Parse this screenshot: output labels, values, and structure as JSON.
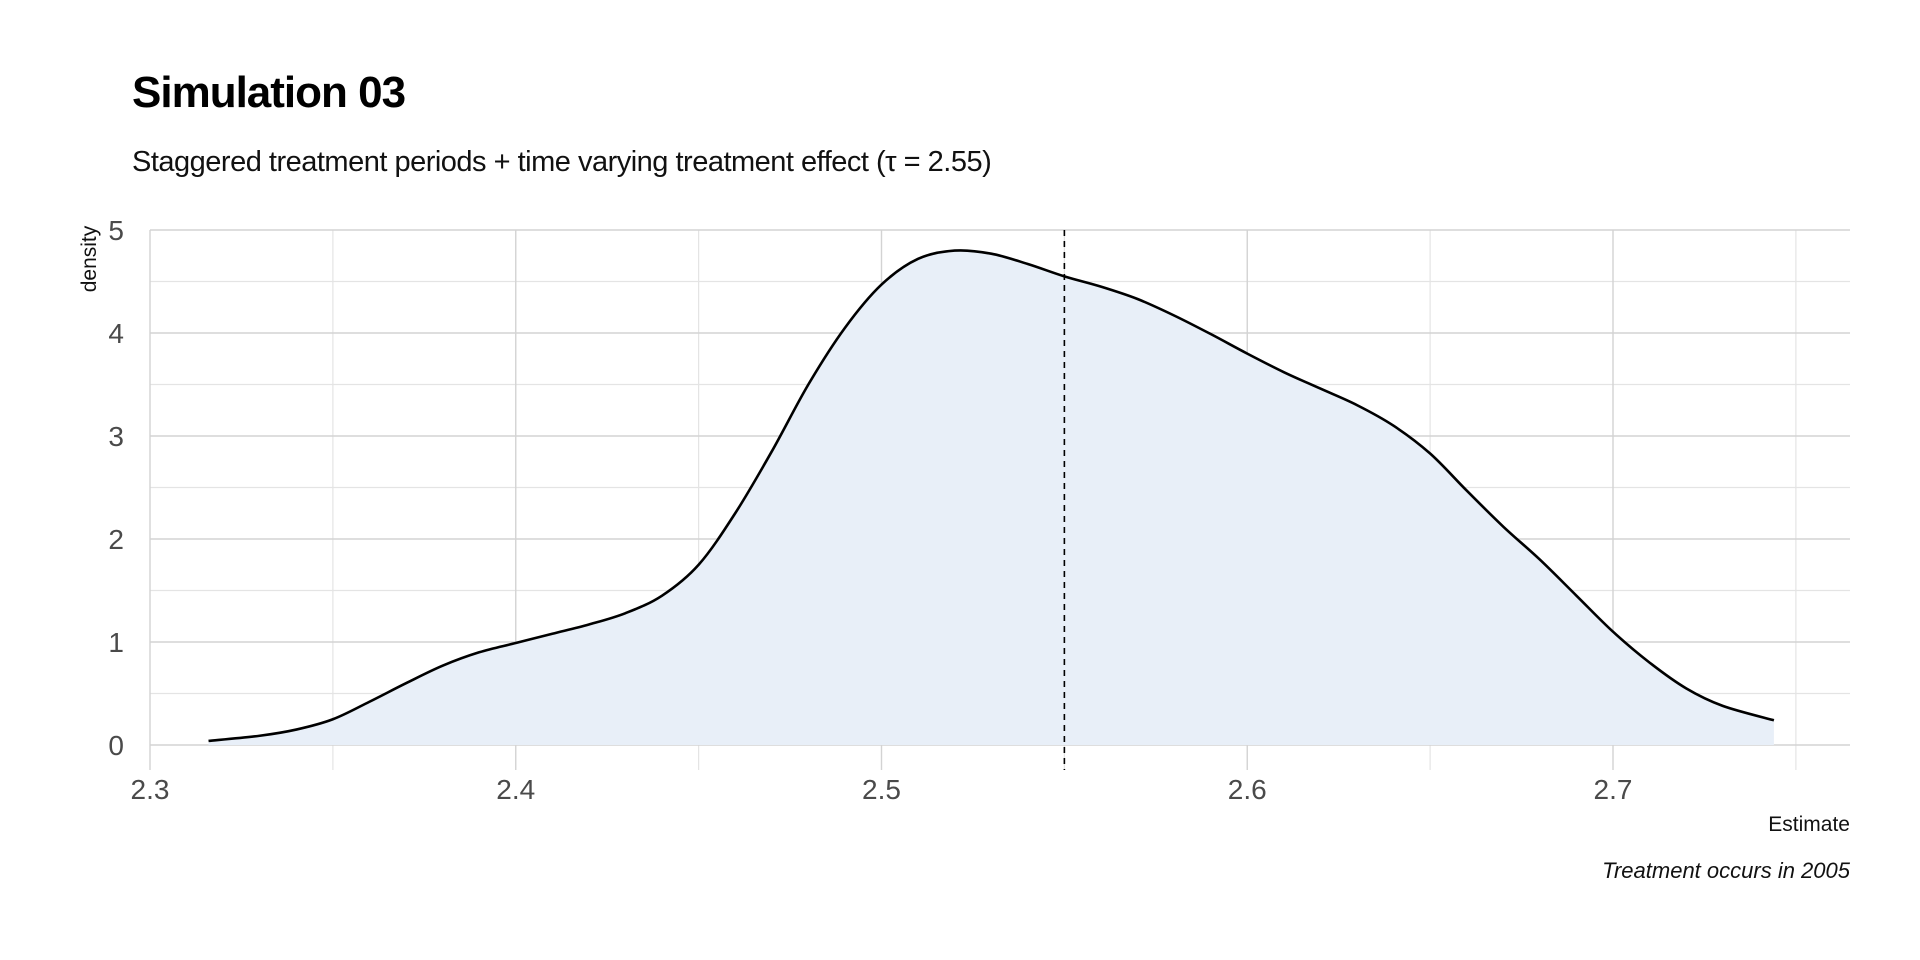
{
  "chart_data": {
    "type": "area",
    "title": "Simulation 03",
    "subtitle": "Staggered treatment periods + time varying treatment effect (τ = 2.55)",
    "caption": "Treatment occurs in 2005",
    "xlabel": "Estimate",
    "ylabel": "density",
    "xlim": [
      2.3,
      2.765
    ],
    "ylim": [
      0,
      5
    ],
    "x_ticks": [
      2.3,
      2.4,
      2.5,
      2.6,
      2.7
    ],
    "x_tick_labels": [
      "2.3",
      "2.4",
      "2.5",
      "2.6",
      "2.7"
    ],
    "y_ticks": [
      0,
      1,
      2,
      3,
      4,
      5
    ],
    "y_tick_labels": [
      "0",
      "1",
      "2",
      "3",
      "4",
      "5"
    ],
    "grid": true,
    "reference_line": {
      "x": 2.55,
      "style": "dashed"
    },
    "fill_color": "#e8eff8",
    "line_color": "#000000",
    "x": [
      2.316,
      2.33,
      2.34,
      2.35,
      2.36,
      2.37,
      2.38,
      2.39,
      2.4,
      2.41,
      2.42,
      2.43,
      2.44,
      2.45,
      2.46,
      2.47,
      2.48,
      2.49,
      2.5,
      2.51,
      2.52,
      2.53,
      2.54,
      2.55,
      2.56,
      2.57,
      2.58,
      2.59,
      2.6,
      2.61,
      2.62,
      2.63,
      2.64,
      2.65,
      2.66,
      2.67,
      2.68,
      2.69,
      2.7,
      2.71,
      2.72,
      2.73,
      2.744
    ],
    "y": [
      0.04,
      0.09,
      0.15,
      0.25,
      0.42,
      0.6,
      0.77,
      0.9,
      0.99,
      1.08,
      1.17,
      1.28,
      1.45,
      1.75,
      2.25,
      2.85,
      3.5,
      4.05,
      4.47,
      4.72,
      4.8,
      4.77,
      4.67,
      4.55,
      4.45,
      4.33,
      4.17,
      3.99,
      3.8,
      3.62,
      3.46,
      3.3,
      3.1,
      2.83,
      2.47,
      2.12,
      1.8,
      1.45,
      1.1,
      0.8,
      0.55,
      0.38,
      0.24
    ]
  }
}
